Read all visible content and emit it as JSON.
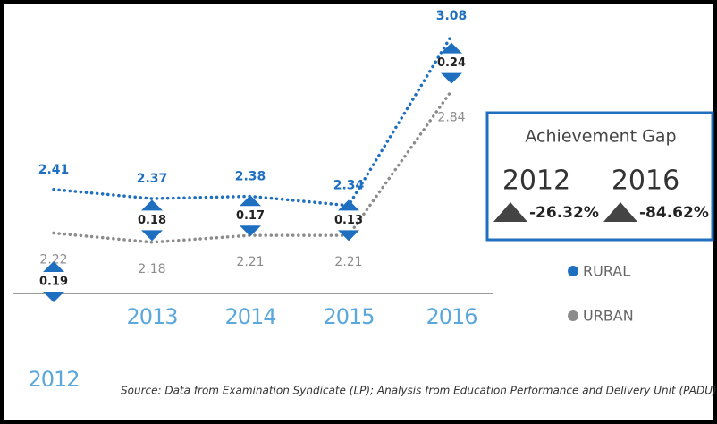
{
  "chart_data": {
    "type": "line",
    "categories": [
      "2012",
      "2013",
      "2014",
      "2015",
      "2016"
    ],
    "series": [
      {
        "name": "RURAL",
        "color": "#1f6fc0",
        "values": [
          2.41,
          2.37,
          2.38,
          2.34,
          3.08
        ]
      },
      {
        "name": "URBAN",
        "color": "#8c8c8c",
        "values": [
          2.22,
          2.18,
          2.21,
          2.21,
          2.84
        ]
      }
    ],
    "gap": {
      "values": [
        0.19,
        0.18,
        0.17,
        0.13,
        0.24
      ]
    },
    "ylim": [
      2.0,
      3.2
    ],
    "achievement_gap": {
      "title": "Achievement Gap",
      "years": [
        "2012",
        "2016"
      ],
      "values": [
        -26.32,
        -84.62
      ],
      "value_labels": [
        "-26.32%",
        "-84.62%"
      ]
    },
    "source": "Source: Data from Examination Syndicate (LP); Analysis from Education Performance and Delivery Unit (PADU)"
  }
}
